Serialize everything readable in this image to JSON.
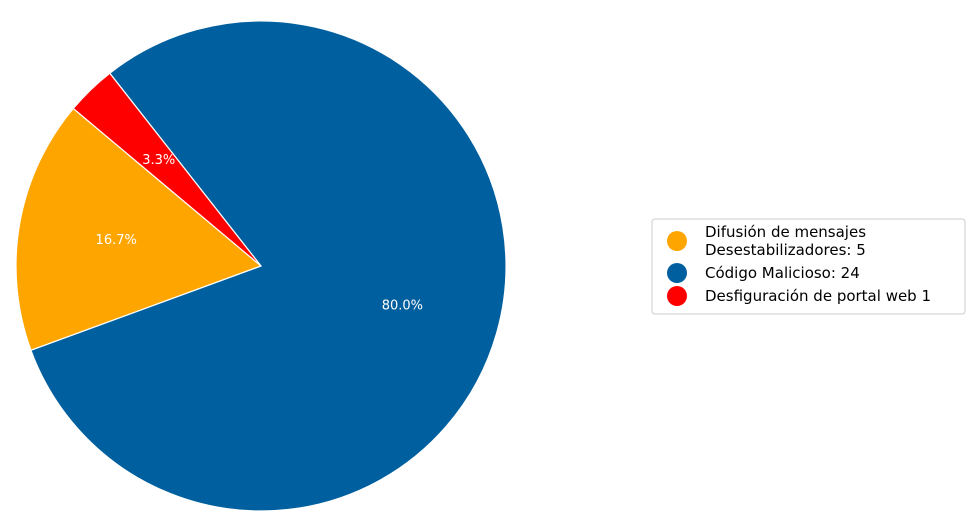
{
  "chart_data": {
    "type": "pie",
    "categories": [
      "Difusión de mensajes\nDesestabilizadores: 5",
      "Código Malicioso: 24",
      "Desfiguración de portal web 1"
    ],
    "values": [
      16.7,
      80.0,
      3.3
    ],
    "value_labels": [
      "16.7%",
      "80.0%",
      "3.3%"
    ],
    "colors": [
      "#ffa500",
      "#005f9e",
      "#ff0000"
    ],
    "legend": "right"
  }
}
